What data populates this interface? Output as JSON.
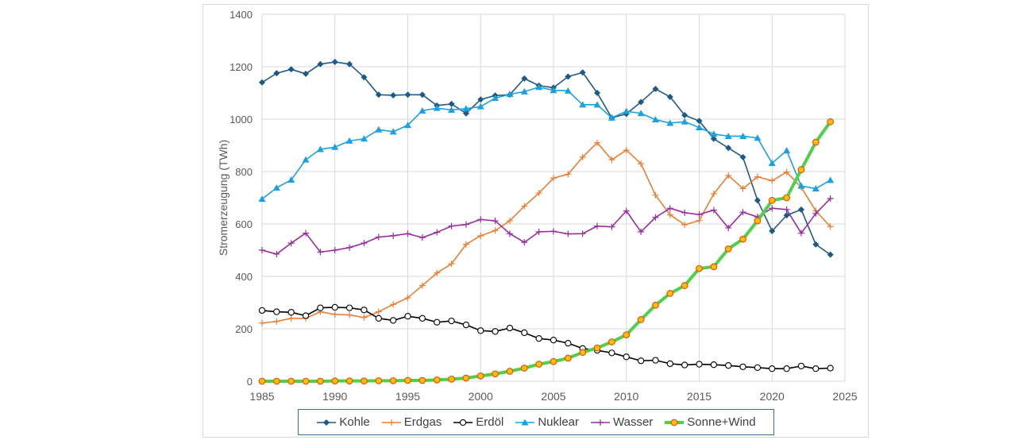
{
  "chart_data": {
    "type": "line",
    "title": "",
    "xlabel": "",
    "ylabel": "Stromerzeugung (TWh)",
    "xlim": [
      1985,
      2025
    ],
    "ylim": [
      0,
      1400
    ],
    "xticks": [
      1985,
      1990,
      1995,
      2000,
      2005,
      2010,
      2015,
      2020,
      2025
    ],
    "yticks": [
      0,
      200,
      400,
      600,
      800,
      1000,
      1200,
      1400
    ],
    "grid": true,
    "legend_position": "bottom",
    "x": [
      1985,
      1986,
      1987,
      1988,
      1989,
      1990,
      1991,
      1992,
      1993,
      1994,
      1995,
      1996,
      1997,
      1998,
      1999,
      2000,
      2001,
      2002,
      2003,
      2004,
      2005,
      2006,
      2007,
      2008,
      2009,
      2010,
      2011,
      2012,
      2013,
      2014,
      2015,
      2016,
      2017,
      2018,
      2019,
      2020,
      2021,
      2022,
      2023,
      2024
    ],
    "series": [
      {
        "name": "Kohle",
        "color": "#1f5a85",
        "marker": "diamond",
        "values": [
          1140,
          1175,
          1190,
          1173,
          1210,
          1218,
          1210,
          1160,
          1093,
          1091,
          1093,
          1093,
          1052,
          1058,
          1022,
          1075,
          1090,
          1093,
          1155,
          1128,
          1120,
          1162,
          1178,
          1100,
          1005,
          1020,
          1065,
          1115,
          1085,
          1015,
          993,
          925,
          890,
          855,
          690,
          573,
          633,
          655,
          522,
          483
        ]
      },
      {
        "name": "Erdgas",
        "color": "#ed7d31",
        "marker": "plus",
        "values": [
          222,
          228,
          240,
          240,
          265,
          255,
          253,
          243,
          265,
          293,
          318,
          365,
          413,
          448,
          522,
          555,
          575,
          612,
          668,
          718,
          775,
          790,
          855,
          910,
          845,
          882,
          830,
          710,
          635,
          597,
          613,
          715,
          785,
          735,
          780,
          765,
          798,
          740,
          650,
          590
        ]
      },
      {
        "name": "Erdöl",
        "color": "#000000",
        "marker": "circle",
        "values": [
          270,
          265,
          263,
          250,
          280,
          282,
          280,
          272,
          240,
          232,
          248,
          240,
          225,
          230,
          215,
          193,
          190,
          203,
          185,
          163,
          157,
          145,
          125,
          118,
          108,
          93,
          78,
          80,
          67,
          62,
          65,
          63,
          60,
          55,
          52,
          48,
          48,
          58,
          48,
          50
        ]
      },
      {
        "name": "Nuklear",
        "color": "#1ba1e2",
        "marker": "triangle",
        "values": [
          695,
          738,
          768,
          845,
          885,
          893,
          917,
          925,
          960,
          952,
          977,
          1032,
          1042,
          1035,
          1040,
          1048,
          1080,
          1095,
          1105,
          1122,
          1110,
          1108,
          1055,
          1055,
          1005,
          1030,
          1022,
          998,
          985,
          990,
          968,
          943,
          935,
          935,
          928,
          832,
          880,
          745,
          735,
          767
        ]
      },
      {
        "name": "Wasser",
        "color": "#9b2ba0",
        "marker": "plus",
        "values": [
          500,
          485,
          527,
          565,
          493,
          500,
          510,
          527,
          550,
          555,
          563,
          548,
          568,
          592,
          598,
          617,
          612,
          563,
          530,
          570,
          572,
          562,
          563,
          592,
          589,
          650,
          570,
          625,
          660,
          643,
          636,
          653,
          585,
          645,
          627,
          660,
          655,
          565,
          640,
          697
        ]
      },
      {
        "name": "Sonne+Wind",
        "color": "#4fd048",
        "marker": "circle-filled",
        "marker_color": "#ffc000",
        "marker_edge": "#e8501b",
        "values": [
          0,
          0,
          0,
          0,
          0,
          1,
          1,
          1,
          2,
          2,
          3,
          3,
          5,
          8,
          12,
          20,
          28,
          38,
          50,
          65,
          75,
          88,
          110,
          127,
          150,
          177,
          235,
          290,
          335,
          365,
          430,
          437,
          505,
          542,
          612,
          690,
          700,
          807,
          912,
          990
        ]
      }
    ]
  }
}
